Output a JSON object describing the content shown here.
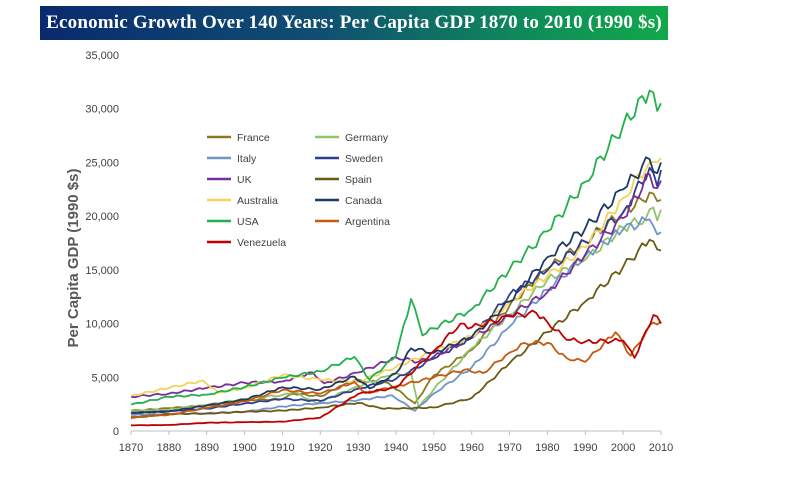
{
  "chart_data": {
    "type": "line",
    "title": "Economic Growth Over 140 Years: Per Capita GDP 1870 to 2010 (1990 $s)",
    "xlabel": "",
    "ylabel": "Per Capita GDP (1990 $s)",
    "xlim": [
      1870,
      2010
    ],
    "ylim": [
      0,
      35000
    ],
    "x_ticks": [
      1870,
      1880,
      1890,
      1900,
      1910,
      1920,
      1930,
      1940,
      1950,
      1960,
      1970,
      1980,
      1990,
      2000,
      2010
    ],
    "y_ticks": [
      0,
      5000,
      10000,
      15000,
      20000,
      25000,
      30000,
      35000
    ],
    "y_tick_labels": [
      "0",
      "5,000",
      "10,000",
      "15,000",
      "20,000",
      "25,000",
      "30,000",
      "35,000"
    ],
    "grid": false,
    "legend_position": "upper-left",
    "series": [
      {
        "name": "France",
        "color": "#8B7A1F",
        "points": [
          [
            1870,
            1876
          ],
          [
            1880,
            2120
          ],
          [
            1890,
            2376
          ],
          [
            1900,
            2876
          ],
          [
            1910,
            2965
          ],
          [
            1913,
            3485
          ],
          [
            1920,
            3227
          ],
          [
            1929,
            4710
          ],
          [
            1938,
            4466
          ],
          [
            1945,
            2573
          ],
          [
            1950,
            5186
          ],
          [
            1960,
            7546
          ],
          [
            1970,
            11664
          ],
          [
            1980,
            15106
          ],
          [
            1990,
            17647
          ],
          [
            2000,
            20392
          ],
          [
            2005,
            21500
          ],
          [
            2007,
            22200
          ],
          [
            2008,
            22100
          ],
          [
            2009,
            21400
          ],
          [
            2010,
            21500
          ]
        ]
      },
      {
        "name": "Germany",
        "color": "#92C46E",
        "points": [
          [
            1870,
            1839
          ],
          [
            1880,
            1991
          ],
          [
            1890,
            2428
          ],
          [
            1900,
            2985
          ],
          [
            1910,
            3348
          ],
          [
            1913,
            3648
          ],
          [
            1919,
            2586
          ],
          [
            1929,
            4051
          ],
          [
            1938,
            5126
          ],
          [
            1944,
            5431
          ],
          [
            1946,
            2217
          ],
          [
            1950,
            3881
          ],
          [
            1960,
            7705
          ],
          [
            1970,
            10839
          ],
          [
            1980,
            14114
          ],
          [
            1990,
            15929
          ],
          [
            2000,
            18944
          ],
          [
            2006,
            19800
          ],
          [
            2008,
            20800
          ],
          [
            2009,
            19600
          ],
          [
            2010,
            20600
          ]
        ]
      },
      {
        "name": "Italy",
        "color": "#6F95C8",
        "points": [
          [
            1870,
            1499
          ],
          [
            1880,
            1581
          ],
          [
            1890,
            1667
          ],
          [
            1900,
            1785
          ],
          [
            1910,
            2281
          ],
          [
            1920,
            2587
          ],
          [
            1930,
            2854
          ],
          [
            1939,
            3316
          ],
          [
            1945,
            1880
          ],
          [
            1950,
            3502
          ],
          [
            1960,
            5916
          ],
          [
            1970,
            9719
          ],
          [
            1980,
            13149
          ],
          [
            1990,
            16313
          ],
          [
            2000,
            18774
          ],
          [
            2007,
            19700
          ],
          [
            2009,
            18300
          ],
          [
            2010,
            18500
          ]
        ]
      },
      {
        "name": "Sweden",
        "color": "#2F3F8F",
        "points": [
          [
            1870,
            1662
          ],
          [
            1880,
            1846
          ],
          [
            1890,
            2086
          ],
          [
            1900,
            2561
          ],
          [
            1910,
            2980
          ],
          [
            1920,
            2802
          ],
          [
            1930,
            3937
          ],
          [
            1940,
            4857
          ],
          [
            1950,
            6739
          ],
          [
            1960,
            8688
          ],
          [
            1970,
            12716
          ],
          [
            1980,
            14937
          ],
          [
            1990,
            17609
          ],
          [
            2000,
            20321
          ],
          [
            2007,
            24500
          ],
          [
            2009,
            22800
          ],
          [
            2010,
            24300
          ]
        ]
      },
      {
        "name": "UK",
        "color": "#7A2E9A",
        "points": [
          [
            1870,
            3190
          ],
          [
            1880,
            3477
          ],
          [
            1890,
            4009
          ],
          [
            1900,
            4492
          ],
          [
            1910,
            4611
          ],
          [
            1918,
            5459
          ],
          [
            1921,
            4439
          ],
          [
            1930,
            5441
          ],
          [
            1940,
            6856
          ],
          [
            1946,
            6440
          ],
          [
            1950,
            6939
          ],
          [
            1960,
            8645
          ],
          [
            1970,
            10767
          ],
          [
            1980,
            12931
          ],
          [
            1990,
            16430
          ],
          [
            2000,
            19817
          ],
          [
            2007,
            23900
          ],
          [
            2009,
            22600
          ],
          [
            2010,
            23300
          ]
        ]
      },
      {
        "name": "Spain",
        "color": "#6B5A12",
        "points": [
          [
            1870,
            1207
          ],
          [
            1880,
            1581
          ],
          [
            1890,
            1624
          ],
          [
            1900,
            1786
          ],
          [
            1910,
            1895
          ],
          [
            1920,
            2177
          ],
          [
            1930,
            2620
          ],
          [
            1936,
            2100
          ],
          [
            1940,
            2080
          ],
          [
            1950,
            2189
          ],
          [
            1960,
            3072
          ],
          [
            1970,
            6319
          ],
          [
            1980,
            9203
          ],
          [
            1990,
            12055
          ],
          [
            2000,
            15269
          ],
          [
            2007,
            17800
          ],
          [
            2009,
            16900
          ],
          [
            2010,
            16800
          ]
        ]
      },
      {
        "name": "Australia",
        "color": "#F5D35A",
        "points": [
          [
            1870,
            3273
          ],
          [
            1880,
            4003
          ],
          [
            1889,
            4700
          ],
          [
            1893,
            3600
          ],
          [
            1900,
            4013
          ],
          [
            1910,
            5210
          ],
          [
            1920,
            4779
          ],
          [
            1930,
            4562
          ],
          [
            1940,
            5980
          ],
          [
            1950,
            7412
          ],
          [
            1960,
            8791
          ],
          [
            1970,
            12024
          ],
          [
            1980,
            14412
          ],
          [
            1990,
            17106
          ],
          [
            2000,
            21691
          ],
          [
            2007,
            25000
          ],
          [
            2009,
            25000
          ],
          [
            2010,
            25400
          ]
        ]
      },
      {
        "name": "Canada",
        "color": "#1F3864",
        "points": [
          [
            1870,
            1695
          ],
          [
            1880,
            1816
          ],
          [
            1890,
            2378
          ],
          [
            1900,
            2911
          ],
          [
            1910,
            4066
          ],
          [
            1920,
            3861
          ],
          [
            1929,
            5065
          ],
          [
            1933,
            3970
          ],
          [
            1940,
            5368
          ],
          [
            1944,
            7698
          ],
          [
            1950,
            7291
          ],
          [
            1960,
            8753
          ],
          [
            1970,
            12050
          ],
          [
            1980,
            16176
          ],
          [
            1990,
            18872
          ],
          [
            2000,
            22488
          ],
          [
            2007,
            25300
          ],
          [
            2009,
            24000
          ],
          [
            2010,
            25000
          ]
        ]
      },
      {
        "name": "USA",
        "color": "#22B14C",
        "points": [
          [
            1870,
            2445
          ],
          [
            1880,
            3184
          ],
          [
            1890,
            3392
          ],
          [
            1900,
            4091
          ],
          [
            1910,
            4964
          ],
          [
            1920,
            5552
          ],
          [
            1929,
            6899
          ],
          [
            1933,
            4777
          ],
          [
            1940,
            7010
          ],
          [
            1944,
            12300
          ],
          [
            1947,
            8886
          ],
          [
            1950,
            9561
          ],
          [
            1960,
            11328
          ],
          [
            1970,
            15030
          ],
          [
            1980,
            18577
          ],
          [
            1990,
            23201
          ],
          [
            2000,
            28467
          ],
          [
            2007,
            31700
          ],
          [
            2009,
            29800
          ],
          [
            2010,
            30500
          ]
        ]
      },
      {
        "name": "Argentina",
        "color": "#C55A11",
        "points": [
          [
            1870,
            1311
          ],
          [
            1880,
            1500
          ],
          [
            1890,
            2152
          ],
          [
            1900,
            2756
          ],
          [
            1910,
            3822
          ],
          [
            1920,
            3473
          ],
          [
            1929,
            4557
          ],
          [
            1932,
            3522
          ],
          [
            1940,
            4161
          ],
          [
            1950,
            4987
          ],
          [
            1958,
            5700
          ],
          [
            1963,
            5400
          ],
          [
            1970,
            7302
          ],
          [
            1974,
            8200
          ],
          [
            1980,
            8206
          ],
          [
            1985,
            6800
          ],
          [
            1990,
            6433
          ],
          [
            1998,
            9200
          ],
          [
            2002,
            7000
          ],
          [
            2006,
            9200
          ],
          [
            2008,
            10100
          ],
          [
            2009,
            9900
          ],
          [
            2010,
            10200
          ]
        ]
      },
      {
        "name": "Venezuela",
        "color": "#C00000",
        "points": [
          [
            1870,
            530
          ],
          [
            1880,
            560
          ],
          [
            1890,
            765
          ],
          [
            1900,
            821
          ],
          [
            1910,
            869
          ],
          [
            1920,
            1250
          ],
          [
            1930,
            3444
          ],
          [
            1940,
            4045
          ],
          [
            1950,
            7462
          ],
          [
            1957,
            10000
          ],
          [
            1960,
            9646
          ],
          [
            1970,
            10672
          ],
          [
            1977,
            11000
          ],
          [
            1980,
            10139
          ],
          [
            1985,
            8500
          ],
          [
            1990,
            8313
          ],
          [
            2000,
            8415
          ],
          [
            2003,
            6800
          ],
          [
            2008,
            10800
          ],
          [
            2010,
            10000
          ]
        ]
      }
    ]
  }
}
